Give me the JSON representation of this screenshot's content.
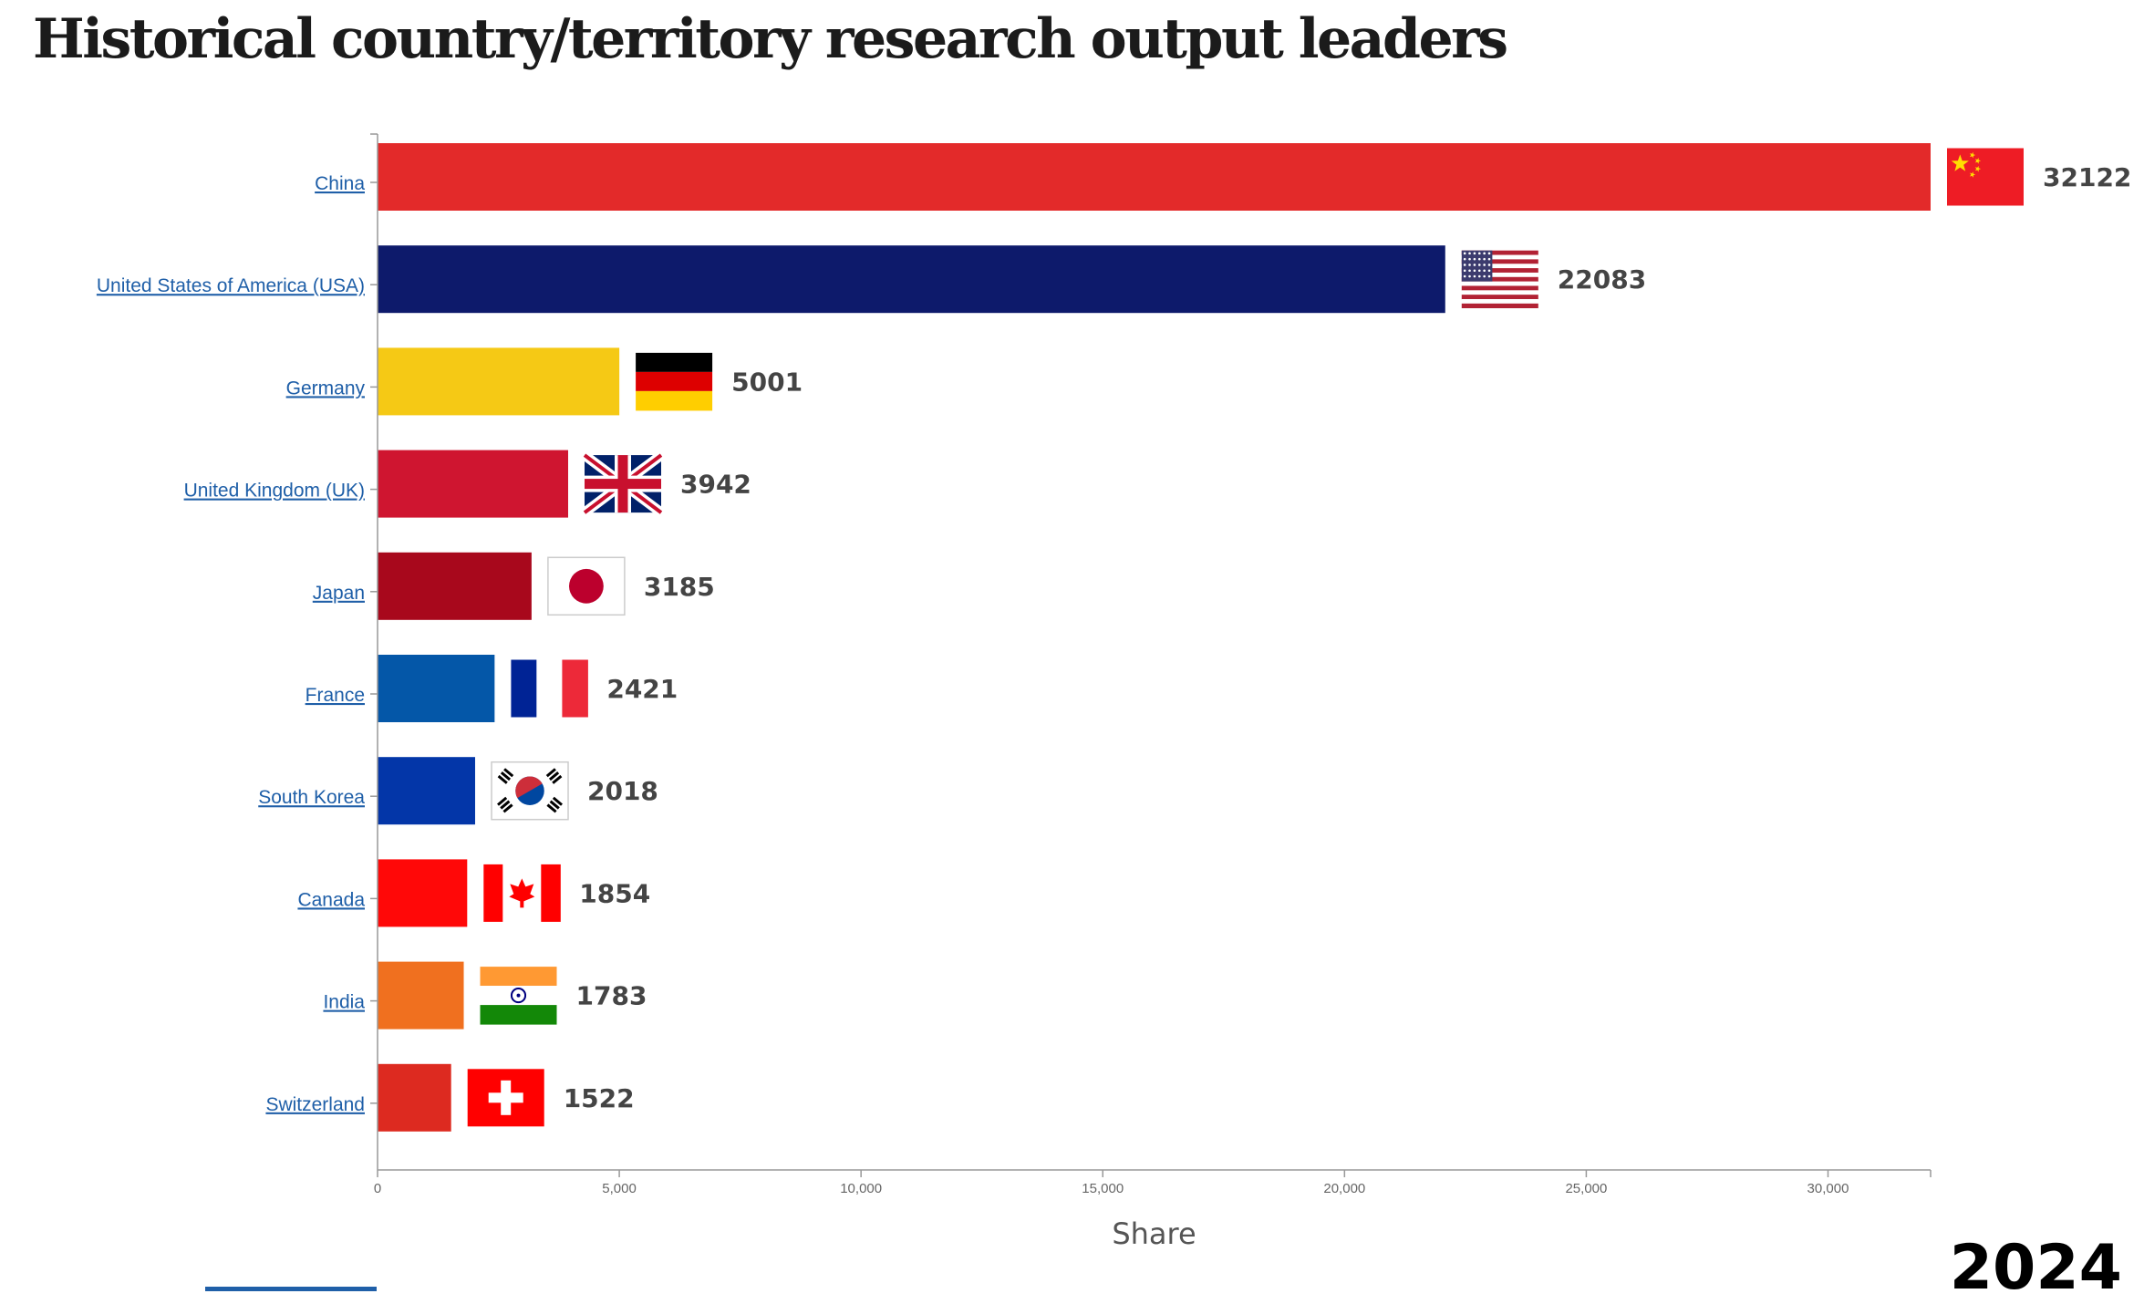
{
  "chart_data": {
    "type": "bar",
    "orientation": "horizontal",
    "title": "Historical country/territory research output leaders",
    "xlabel": "Share",
    "ylabel": "",
    "xlim": [
      0,
      32122
    ],
    "xticks": [
      0,
      5000,
      10000,
      15000,
      20000,
      25000,
      30000
    ],
    "xtick_labels": [
      "0",
      "5,000",
      "10,000",
      "15,000",
      "20,000",
      "25,000",
      "30,000"
    ],
    "year": "2024",
    "categories": [
      "China",
      "United States of America (USA)",
      "Germany",
      "United Kingdom (UK)",
      "Japan",
      "France",
      "South Korea",
      "Canada",
      "India",
      "Switzerland"
    ],
    "values": [
      32122,
      22083,
      5001,
      3942,
      3185,
      2421,
      2018,
      1854,
      1783,
      1522
    ],
    "value_labels": [
      "32122",
      "22083",
      "5001",
      "3942",
      "3185",
      "2421",
      "2018",
      "1854",
      "1783",
      "1522"
    ],
    "colors": [
      "#e32a2a",
      "#0d1a6b",
      "#f5c915",
      "#cf1530",
      "#a8081c",
      "#0457a8",
      "#0336a8",
      "#ff0808",
      "#f0701f",
      "#dd2a20"
    ],
    "flags": [
      "china-flag",
      "usa-flag",
      "germany-flag",
      "uk-flag",
      "japan-flag",
      "france-flag",
      "south-korea-flag",
      "canada-flag",
      "india-flag",
      "switzerland-flag"
    ],
    "grid": false,
    "legend": "none"
  }
}
